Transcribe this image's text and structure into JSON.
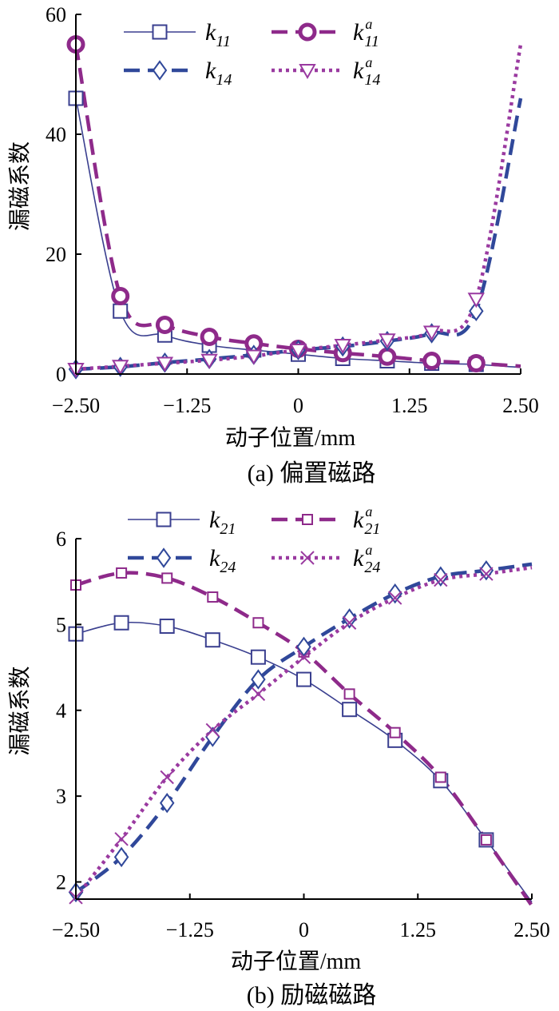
{
  "chart_data": [
    {
      "type": "line",
      "caption": "(a)  偏置磁路",
      "xlabel": "动子位置/mm",
      "ylabel": "漏磁系数",
      "xlim": [
        -2.5,
        2.5
      ],
      "ylim": [
        0,
        60
      ],
      "xticks": [
        "−2.50",
        "−1.25",
        "0",
        "1.25",
        "2.50"
      ],
      "yticks": [
        "0",
        "20",
        "40",
        "60"
      ],
      "legend_placement": "top",
      "series": [
        {
          "name": "k11",
          "base": "k",
          "sub": "11",
          "sup": "",
          "color": "#3a3f8f",
          "dash": "",
          "width": 1.6,
          "marker": "square",
          "x": [
            -2.5,
            -2.0,
            -1.5,
            -1.0,
            -0.5,
            0.0,
            0.5,
            1.0,
            1.5,
            2.0
          ],
          "y": [
            46,
            10.5,
            6.5,
            4.8,
            4.0,
            3.3,
            2.6,
            2.2,
            1.8,
            1.6
          ]
        },
        {
          "name": "k11a",
          "base": "k",
          "sub": "11",
          "sup": "a",
          "color": "#8e2a8a",
          "dash": "20,10",
          "width": 4.5,
          "marker": "circle",
          "x": [
            -2.5,
            -2.0,
            -1.5,
            -1.0,
            -0.5,
            0.0,
            0.5,
            1.0,
            1.5,
            2.0
          ],
          "y": [
            55,
            13,
            8.2,
            6.2,
            5.1,
            4.2,
            3.5,
            2.9,
            2.2,
            1.8
          ]
        },
        {
          "name": "k14",
          "base": "k",
          "sub": "14",
          "sup": "",
          "color": "#30489a",
          "dash": "20,10",
          "width": 4.5,
          "marker": "diamond",
          "x": [
            -2.5,
            -2.0,
            -1.5,
            -1.0,
            -0.5,
            0.0,
            0.5,
            1.0,
            1.5,
            2.0
          ],
          "y": [
            0.8,
            1.2,
            1.9,
            2.5,
            3.2,
            4.0,
            4.6,
            5.5,
            6.8,
            10.5
          ]
        },
        {
          "name": "k14a",
          "base": "k",
          "sub": "14",
          "sup": "a",
          "color": "#9a3aa0",
          "dash": "4,5",
          "width": 4.5,
          "marker": "triangle-down",
          "x": [
            -2.5,
            -2.0,
            -1.5,
            -1.0,
            -0.5,
            0.0,
            0.5,
            1.0,
            1.5,
            2.0
          ],
          "y": [
            0.8,
            1.3,
            1.8,
            2.3,
            3.0,
            4.0,
            4.8,
            5.7,
            7.0,
            12.5
          ]
        }
      ]
    },
    {
      "type": "line",
      "caption": "(b)  励磁磁路",
      "xlabel": "动子位置/mm",
      "ylabel": "漏磁系数",
      "xlim": [
        -2.5,
        2.5
      ],
      "ylim": [
        1.8,
        6
      ],
      "xticks": [
        "−2.50",
        "−1.25",
        "0",
        "1.25",
        "2.50"
      ],
      "yticks": [
        "2",
        "3",
        "4",
        "5",
        "6"
      ],
      "legend_placement": "top",
      "series": [
        {
          "name": "k21",
          "base": "k",
          "sub": "21",
          "sup": "",
          "color": "#3a3f8f",
          "dash": "",
          "width": 1.6,
          "marker": "square",
          "x": [
            -2.5,
            -2.0,
            -1.5,
            -1.0,
            -0.5,
            0.0,
            0.5,
            1.0,
            1.5,
            2.0
          ],
          "y": [
            4.89,
            5.02,
            4.98,
            4.82,
            4.62,
            4.36,
            4.01,
            3.65,
            3.18,
            2.49
          ]
        },
        {
          "name": "k21a",
          "base": "k",
          "sub": "21",
          "sup": "a",
          "color": "#8e2a8a",
          "dash": "20,10",
          "width": 4.5,
          "marker": "square-small",
          "x": [
            -2.5,
            -2.0,
            -1.5,
            -1.0,
            -0.5,
            0.0,
            0.5,
            1.0,
            1.5,
            2.0
          ],
          "y": [
            5.46,
            5.6,
            5.54,
            5.32,
            5.02,
            4.68,
            4.19,
            3.74,
            3.22,
            2.49
          ]
        },
        {
          "name": "k24",
          "base": "k",
          "sub": "24",
          "sup": "",
          "color": "#30489a",
          "dash": "20,10",
          "width": 4.5,
          "marker": "diamond",
          "x": [
            -2.5,
            -2.0,
            -1.5,
            -1.0,
            -0.5,
            0.0,
            0.5,
            1.0,
            1.5,
            2.0
          ],
          "y": [
            1.88,
            2.29,
            2.92,
            3.69,
            4.36,
            4.74,
            5.07,
            5.36,
            5.56,
            5.63
          ]
        },
        {
          "name": "k24a",
          "base": "k",
          "sub": "24",
          "sup": "a",
          "color": "#9a3aa0",
          "dash": "4,5",
          "width": 4.5,
          "marker": "x",
          "x": [
            -2.5,
            -2.0,
            -1.5,
            -1.0,
            -0.5,
            0.0,
            0.5,
            1.0,
            1.5,
            2.0
          ],
          "y": [
            1.82,
            2.5,
            3.22,
            3.77,
            4.19,
            4.62,
            5.02,
            5.31,
            5.52,
            5.59
          ]
        }
      ]
    }
  ]
}
